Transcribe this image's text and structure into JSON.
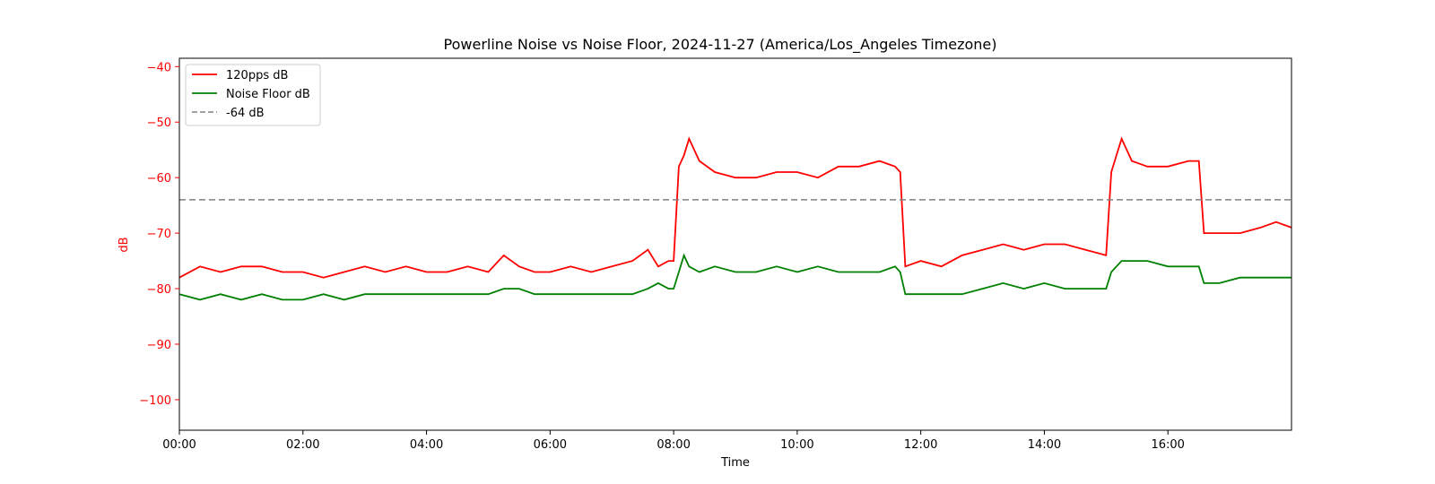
{
  "chart_data": {
    "type": "line",
    "title": "Powerline Noise vs Noise Floor, 2024-11-27 (America/Los_Angeles Timezone)",
    "xlabel": "Time",
    "ylabel": "dB",
    "xlim": [
      "00:00",
      "18:00"
    ],
    "ylim": [
      -105.5,
      -38.5
    ],
    "x_ticks": [
      "00:00",
      "02:00",
      "04:00",
      "06:00",
      "08:00",
      "10:00",
      "12:00",
      "14:00",
      "16:00"
    ],
    "y_ticks": [
      "−40",
      "−50",
      "−60",
      "−70",
      "−80",
      "−90",
      "−100"
    ],
    "grid": false,
    "legend_position": "top-left",
    "colors": {
      "signal": "#ff0000",
      "noise_floor": "#008000",
      "threshold": "#808080",
      "y_axis": "#ff0000"
    },
    "series": [
      {
        "name": "120pps dB",
        "style": "solid",
        "x": [
          "00:00",
          "00:20",
          "00:40",
          "01:00",
          "01:20",
          "01:40",
          "02:00",
          "02:20",
          "02:40",
          "03:00",
          "03:20",
          "03:40",
          "04:00",
          "04:20",
          "04:40",
          "05:00",
          "05:15",
          "05:30",
          "05:45",
          "06:00",
          "06:20",
          "06:40",
          "07:00",
          "07:20",
          "07:35",
          "07:45",
          "07:55",
          "08:00",
          "08:05",
          "08:10",
          "08:15",
          "08:25",
          "08:40",
          "09:00",
          "09:20",
          "09:40",
          "10:00",
          "10:20",
          "10:40",
          "11:00",
          "11:20",
          "11:35",
          "11:40",
          "11:45",
          "12:00",
          "12:20",
          "12:40",
          "13:00",
          "13:20",
          "13:40",
          "14:00",
          "14:20",
          "14:40",
          "15:00",
          "15:05",
          "15:10",
          "15:15",
          "15:25",
          "15:40",
          "16:00",
          "16:20",
          "16:30",
          "16:35",
          "16:50",
          "17:10",
          "17:30",
          "17:45",
          "18:00"
        ],
        "values": [
          -78,
          -76,
          -77,
          -76,
          -76,
          -77,
          -77,
          -78,
          -77,
          -76,
          -77,
          -76,
          -77,
          -77,
          -76,
          -77,
          -74,
          -76,
          -77,
          -77,
          -76,
          -77,
          -76,
          -75,
          -73,
          -76,
          -75,
          -75,
          -58,
          -56,
          -53,
          -57,
          -59,
          -60,
          -60,
          -59,
          -59,
          -60,
          -58,
          -58,
          -57,
          -58,
          -59,
          -76,
          -75,
          -76,
          -74,
          -73,
          -72,
          -73,
          -72,
          -72,
          -73,
          -74,
          -59,
          -56,
          -53,
          -57,
          -58,
          -58,
          -57,
          -57,
          -70,
          -70,
          -70,
          -69,
          -68,
          -69
        ]
      },
      {
        "name": "Noise Floor dB",
        "style": "solid",
        "x": [
          "00:00",
          "00:20",
          "00:40",
          "01:00",
          "01:20",
          "01:40",
          "02:00",
          "02:20",
          "02:40",
          "03:00",
          "03:20",
          "03:40",
          "04:00",
          "04:20",
          "04:40",
          "05:00",
          "05:15",
          "05:30",
          "05:45",
          "06:00",
          "06:20",
          "06:40",
          "07:00",
          "07:20",
          "07:35",
          "07:45",
          "07:55",
          "08:00",
          "08:05",
          "08:10",
          "08:15",
          "08:25",
          "08:40",
          "09:00",
          "09:20",
          "09:40",
          "10:00",
          "10:20",
          "10:40",
          "11:00",
          "11:20",
          "11:35",
          "11:40",
          "11:45",
          "12:00",
          "12:20",
          "12:40",
          "13:00",
          "13:20",
          "13:40",
          "14:00",
          "14:20",
          "14:40",
          "15:00",
          "15:05",
          "15:10",
          "15:15",
          "15:25",
          "15:40",
          "16:00",
          "16:20",
          "16:30",
          "16:35",
          "16:50",
          "17:10",
          "17:30",
          "17:45",
          "18:00"
        ],
        "values": [
          -81,
          -82,
          -81,
          -82,
          -81,
          -82,
          -82,
          -81,
          -82,
          -81,
          -81,
          -81,
          -81,
          -81,
          -81,
          -81,
          -80,
          -80,
          -81,
          -81,
          -81,
          -81,
          -81,
          -81,
          -80,
          -79,
          -80,
          -80,
          -77,
          -74,
          -76,
          -77,
          -76,
          -77,
          -77,
          -76,
          -77,
          -76,
          -77,
          -77,
          -77,
          -76,
          -77,
          -81,
          -81,
          -81,
          -81,
          -80,
          -79,
          -80,
          -79,
          -80,
          -80,
          -80,
          -77,
          -76,
          -75,
          -75,
          -75,
          -76,
          -76,
          -76,
          -79,
          -79,
          -78,
          -78,
          -78,
          -78
        ]
      },
      {
        "name": "-64 dB",
        "style": "dashed",
        "x": [
          "00:00",
          "18:00"
        ],
        "values": [
          -64,
          -64
        ]
      }
    ]
  }
}
